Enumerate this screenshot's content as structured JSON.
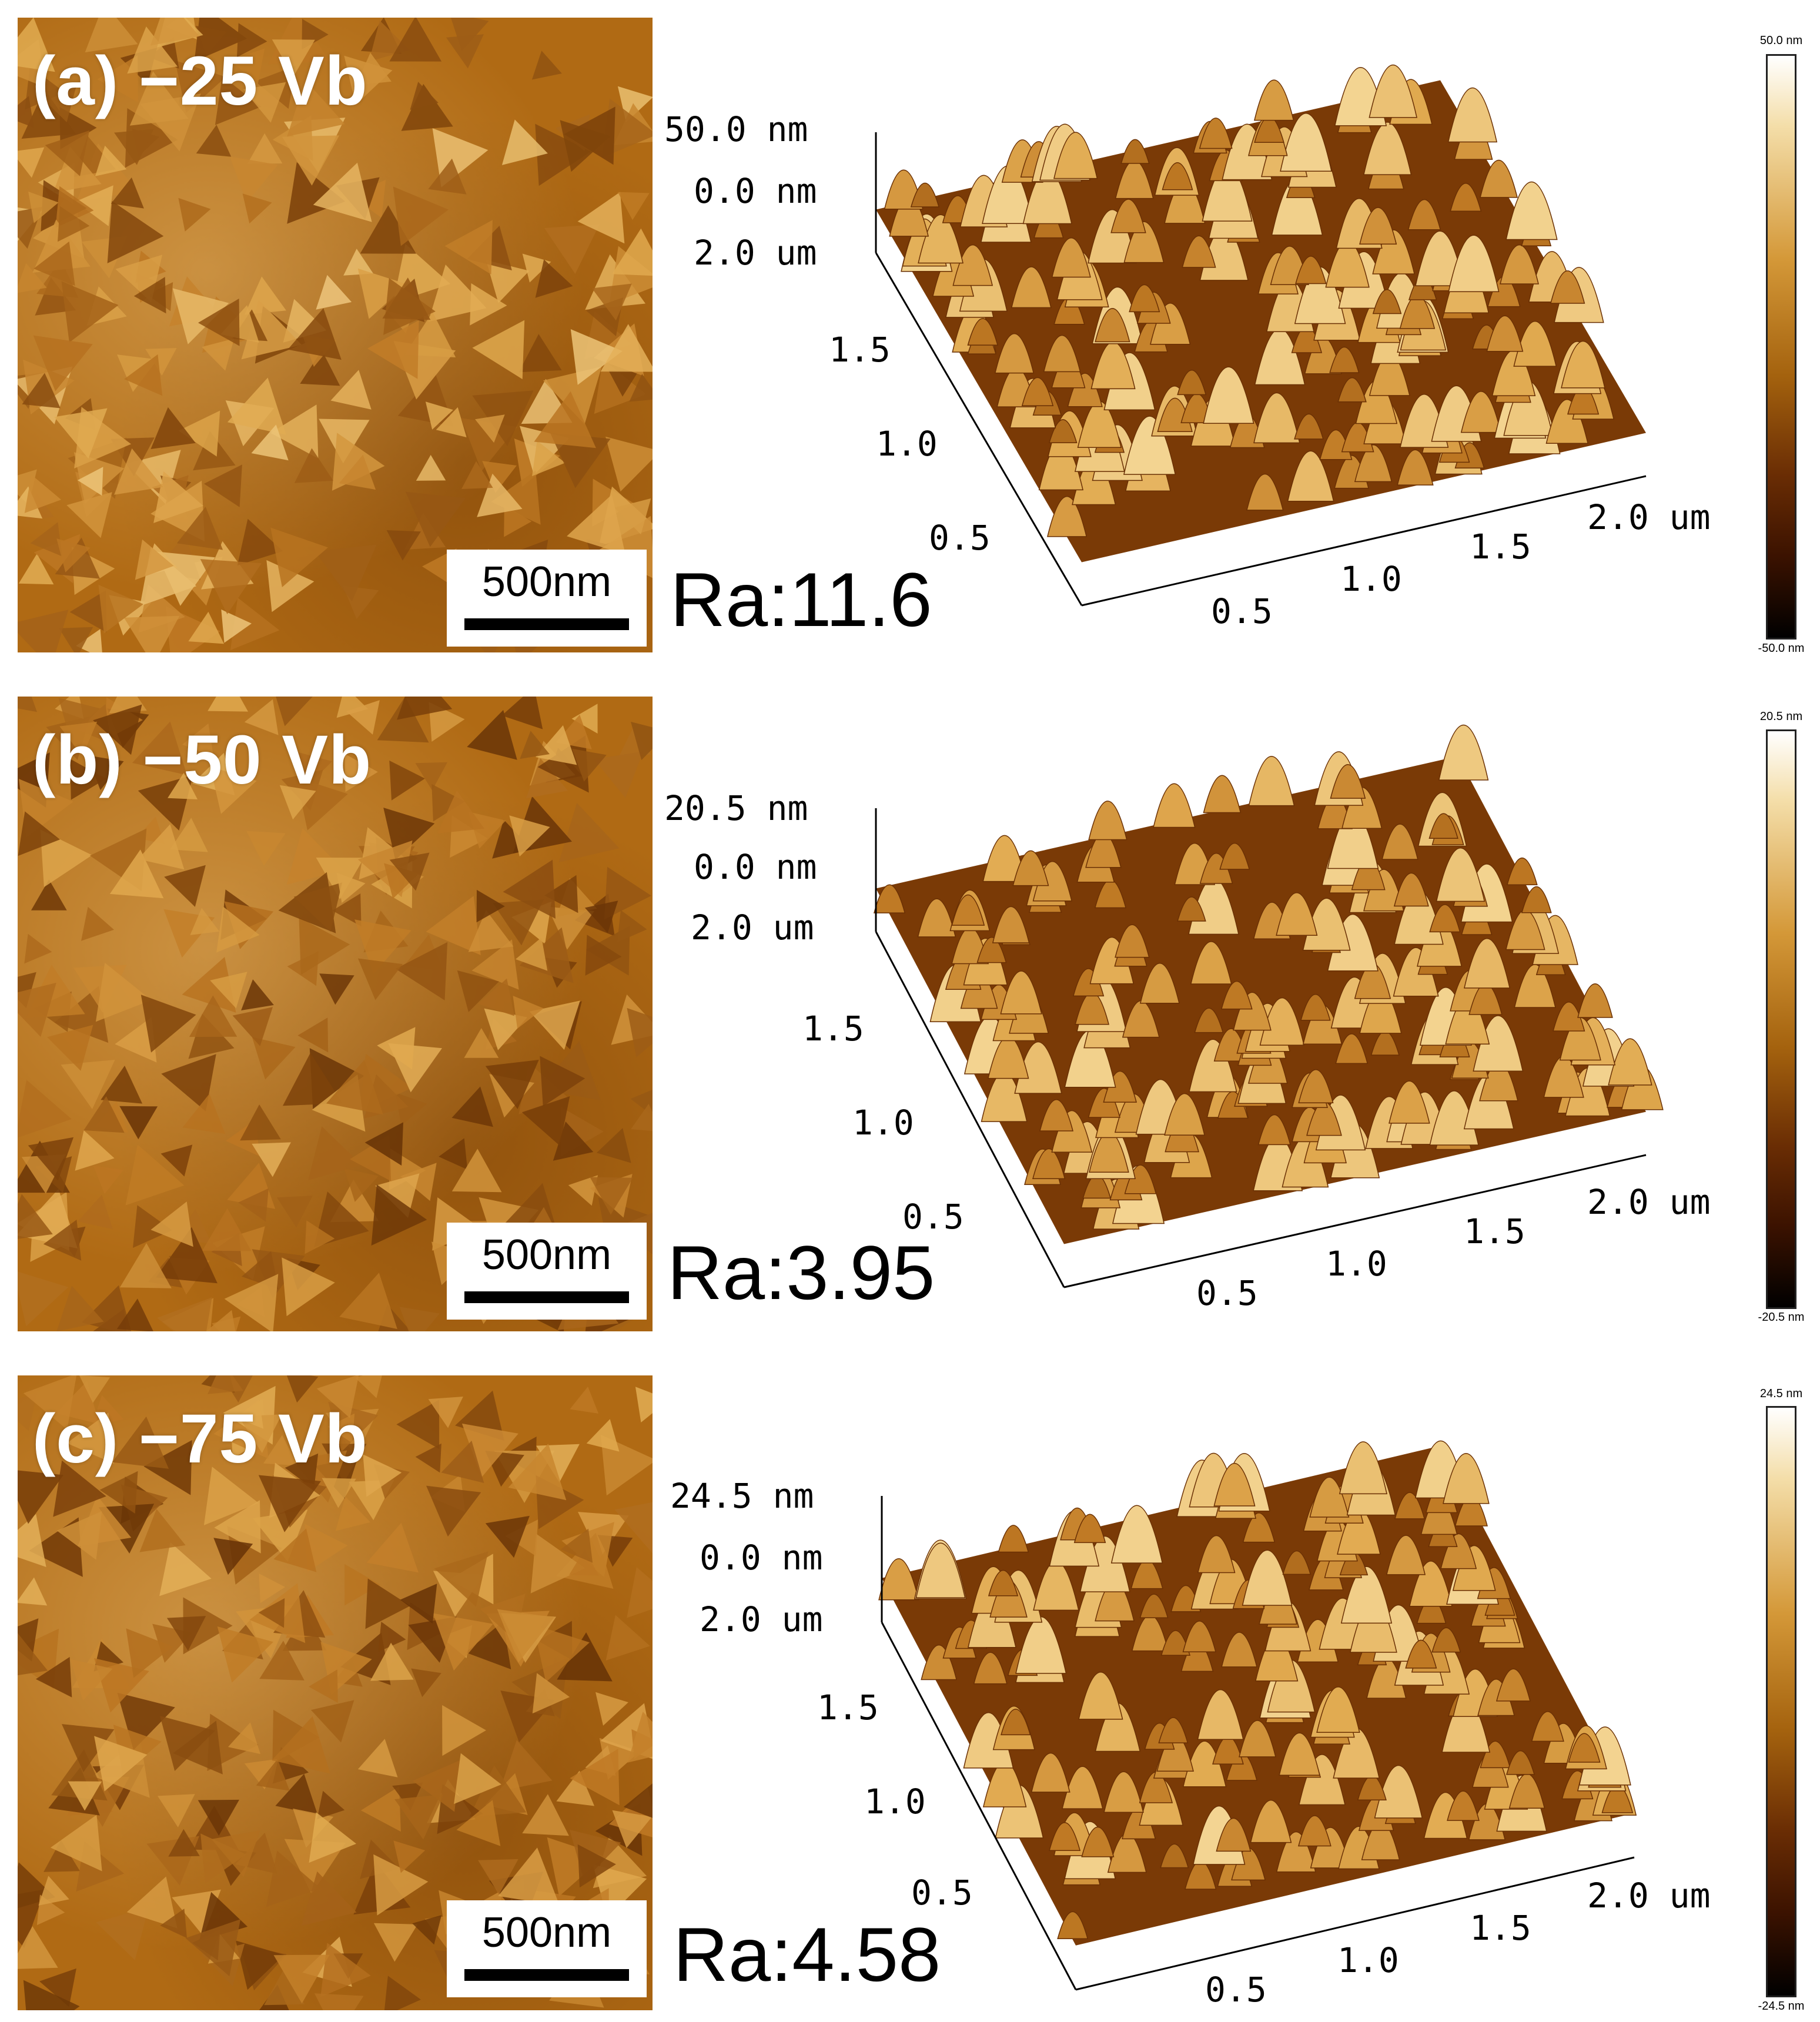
{
  "panels": [
    {
      "label": "(a) −25 Vb",
      "scale_bar": "500nm",
      "roughness": "Ra:11.6",
      "z_top": "50.0 nm",
      "z_mid": "0.0 nm",
      "y_top": "2.0 um",
      "y_ticks": [
        "1.5",
        "1.0",
        "0.5"
      ],
      "x_ticks": [
        "0.5",
        "1.0",
        "1.5",
        "2.0 um"
      ],
      "colorbar_max": "50.0 nm",
      "colorbar_min": "-50.0 nm"
    },
    {
      "label": "(b) −50 Vb",
      "scale_bar": "500nm",
      "roughness": "Ra:3.95",
      "z_top": "20.5 nm",
      "z_mid": "0.0 nm",
      "y_top": "2.0 um",
      "y_ticks": [
        "1.5",
        "1.0",
        "0.5"
      ],
      "x_ticks": [
        "0.5",
        "1.0",
        "1.5",
        "2.0 um"
      ],
      "colorbar_max": "20.5 nm",
      "colorbar_min": "-20.5 nm"
    },
    {
      "label": "(c) −75 Vb",
      "scale_bar": "500nm",
      "roughness": "Ra:4.58",
      "z_top": "24.5 nm",
      "z_mid": "0.0 nm",
      "y_top": "2.0 um",
      "y_ticks": [
        "1.5",
        "1.0",
        "0.5"
      ],
      "x_ticks": [
        "0.5",
        "1.0",
        "1.5",
        "2.0 um"
      ],
      "colorbar_max": "24.5 nm",
      "colorbar_min": "-24.5 nm"
    }
  ],
  "colors": {
    "afm_dark": "#3b1400",
    "afm_mid": "#b06a14",
    "afm_light": "#f6dca0"
  }
}
